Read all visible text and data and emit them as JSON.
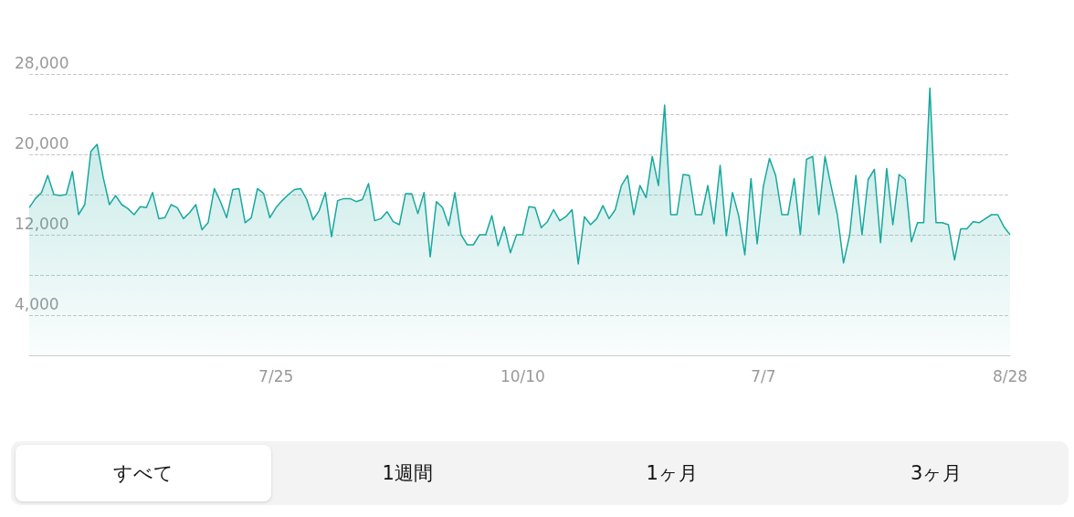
{
  "chart_data": {
    "type": "area",
    "categories": [
      null,
      null,
      null,
      null,
      null,
      null,
      null,
      null,
      null,
      null,
      null,
      null,
      null,
      null,
      null,
      null,
      null,
      null,
      null,
      null,
      null,
      null,
      null,
      null,
      null,
      null,
      null,
      null,
      null,
      null,
      null,
      null,
      null,
      null,
      null,
      null,
      null,
      null,
      null,
      null,
      "7/25",
      null,
      null,
      null,
      null,
      null,
      null,
      null,
      null,
      null,
      null,
      null,
      null,
      null,
      null,
      null,
      null,
      null,
      null,
      null,
      null,
      null,
      null,
      null,
      null,
      null,
      null,
      null,
      null,
      null,
      null,
      null,
      null,
      null,
      null,
      null,
      null,
      null,
      null,
      null,
      "10/10",
      null,
      null,
      null,
      null,
      null,
      null,
      null,
      null,
      null,
      null,
      null,
      null,
      null,
      null,
      null,
      null,
      null,
      null,
      null,
      null,
      null,
      null,
      null,
      null,
      null,
      null,
      null,
      null,
      null,
      null,
      null,
      null,
      null,
      null,
      null,
      null,
      null,
      null,
      "7/7",
      null,
      null,
      null,
      null,
      null,
      null,
      null,
      null,
      null,
      null,
      null,
      null,
      null,
      null,
      null,
      null,
      null,
      null,
      null,
      null,
      null,
      null,
      null,
      null,
      null,
      null,
      null,
      null,
      null,
      null,
      null,
      null,
      null,
      null,
      null,
      null,
      null,
      null,
      null,
      "8/28"
    ],
    "series": [
      {
        "color": "#17a89e",
        "values": [
          14700,
          15600,
          16200,
          17900,
          16000,
          15900,
          16000,
          18300,
          14000,
          15000,
          20300,
          21000,
          17700,
          15000,
          15900,
          15000,
          14600,
          14000,
          14800,
          14700,
          16200,
          13600,
          13700,
          15000,
          14700,
          13600,
          14200,
          15000,
          12500,
          13200,
          16600,
          15300,
          13700,
          16500,
          16600,
          13200,
          13700,
          16600,
          16100,
          13700,
          14700,
          15400,
          16000,
          16500,
          16600,
          15500,
          13500,
          14400,
          16200,
          11800,
          15400,
          15600,
          15600,
          15300,
          15500,
          17100,
          13400,
          13600,
          14300,
          13300,
          13000,
          16100,
          16100,
          14100,
          16200,
          9800,
          15300,
          14700,
          12900,
          16200,
          12000,
          11000,
          11000,
          12000,
          12000,
          13900,
          10900,
          12800,
          10200,
          12000,
          12000,
          14800,
          14700,
          12700,
          13300,
          14500,
          13400,
          13800,
          14500,
          9100,
          13800,
          13000,
          13600,
          14900,
          13600,
          14500,
          16900,
          17900,
          14000,
          16900,
          15700,
          19800,
          16900,
          24900,
          14000,
          14000,
          18000,
          17900,
          14000,
          14000,
          16900,
          13100,
          18900,
          11900,
          16200,
          13900,
          10000,
          17600,
          11100,
          16800,
          19600,
          17900,
          14000,
          14000,
          17600,
          12000,
          19500,
          19800,
          14000,
          19800,
          16800,
          14000,
          9200,
          12000,
          17900,
          12000,
          17500,
          18500,
          11200,
          18600,
          13000,
          18000,
          17500,
          11300,
          13200,
          13200,
          26600,
          13200,
          13200,
          13000,
          9500,
          12600,
          12600,
          13300,
          13200,
          13600,
          14000,
          14000,
          12800,
          12000
        ]
      }
    ],
    "ylim": [
      0,
      28000
    ],
    "yticks": [
      {
        "value": 0,
        "label": null
      },
      {
        "value": 4000,
        "label": "4,000"
      },
      {
        "value": 8000,
        "label": null
      },
      {
        "value": 12000,
        "label": "12,000"
      },
      {
        "value": 16000,
        "label": null
      },
      {
        "value": 20000,
        "label": "20,000"
      },
      {
        "value": 24000,
        "label": null
      },
      {
        "value": 28000,
        "label": "28,000"
      }
    ],
    "grid": "y",
    "line_style": "solid",
    "marker": "none",
    "annotations": [
      "すべて",
      "1週間",
      "1ヶ月",
      "3ヶ月"
    ]
  }
}
